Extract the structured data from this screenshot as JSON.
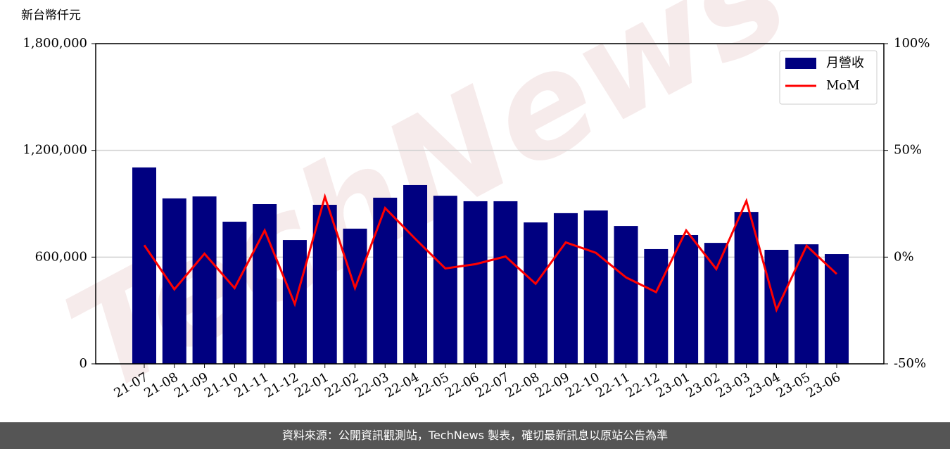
{
  "chart_data": {
    "type": "bar_line",
    "watermark": "TechNews",
    "ylabel": "新台幣仟元",
    "categories": [
      "21-07",
      "21-08",
      "21-09",
      "21-10",
      "21-11",
      "21-12",
      "22-01",
      "22-02",
      "22-03",
      "22-04",
      "22-05",
      "22-06",
      "22-07",
      "22-08",
      "22-09",
      "22-10",
      "22-11",
      "22-12",
      "23-01",
      "23-02",
      "23-03",
      "23-04",
      "23-05",
      "23-06"
    ],
    "series": [
      {
        "name": "月營收",
        "type": "bar",
        "color": "#000080",
        "values": [
          1104000,
          930000,
          941000,
          799000,
          898000,
          696000,
          894000,
          760000,
          934000,
          1005000,
          945000,
          914000,
          914000,
          795000,
          847000,
          862000,
          775000,
          645000,
          724000,
          680000,
          854000,
          641000,
          672000,
          617000
        ]
      },
      {
        "name": "MoM",
        "type": "line",
        "axis": "y2",
        "color": "#ff0000",
        "values": [
          5.6,
          -15.1,
          1.6,
          -14.5,
          12.5,
          -22.0,
          28.3,
          -14.5,
          23.0,
          8.6,
          -5.3,
          -3.3,
          0.3,
          -12.5,
          6.9,
          2.0,
          -9.5,
          -16.4,
          12.5,
          -5.6,
          26.3,
          -24.7,
          5.3,
          -7.9
        ]
      }
    ],
    "ylim": [
      0,
      1800000
    ],
    "yticks": [
      {
        "value": 0,
        "label": "0"
      },
      {
        "value": 600000,
        "label": "600,000"
      },
      {
        "value": 1200000,
        "label": "1,200,000"
      },
      {
        "value": 1800000,
        "label": "1,800,000"
      }
    ],
    "y2lim": [
      -50,
      100
    ],
    "y2ticks": [
      {
        "value": -50,
        "label": "-50%"
      },
      {
        "value": 0,
        "label": "0%"
      },
      {
        "value": 50,
        "label": "50%"
      },
      {
        "value": 100,
        "label": "100%"
      }
    ],
    "grid": true,
    "legend": "upper right",
    "footer": "資料來源：公開資訊觀測站，TechNews 製表，確切最新訊息以原站公告為準"
  }
}
